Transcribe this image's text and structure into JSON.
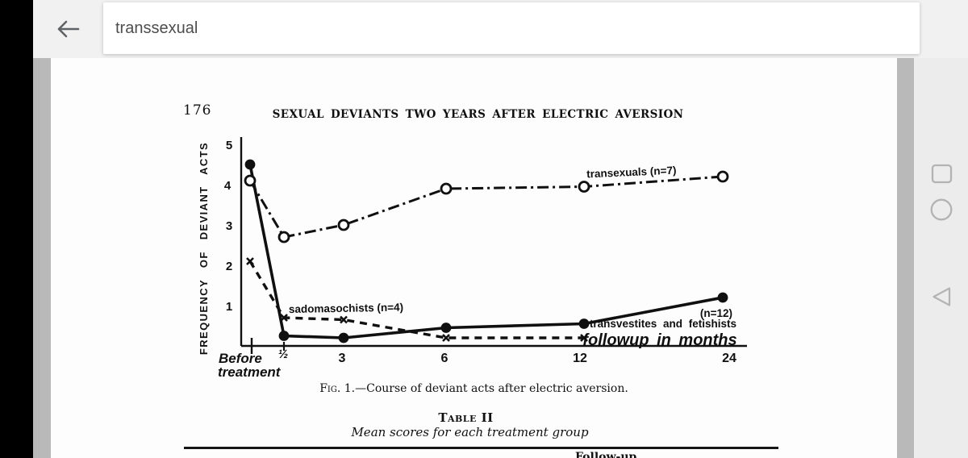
{
  "app": {
    "search_query": "transsexual",
    "icons": {
      "back": "arrow-left-icon",
      "nav_recents": "recents-square-icon",
      "nav_home": "home-circle-icon",
      "nav_back": "back-triangle-icon"
    }
  },
  "page": {
    "page_number": "176",
    "running_title": "SEXUAL DEVIANTS TWO YEARS AFTER ELECTRIC AVERSION",
    "figure_caption_prefix": "Fig. 1.—",
    "figure_caption_text": "Course of deviant acts after electric aversion.",
    "table_label": "Table II",
    "table_subtitle": "Mean scores for each treatment group",
    "table_partial_header": "Follow-up"
  },
  "chart_data": {
    "type": "line",
    "ylabel": "FREQUENCY OF DEVIANT ACTS",
    "xlabel": "followup in months",
    "categories": [
      "Before treatment",
      "½",
      "3",
      "6",
      "12",
      "24"
    ],
    "x_tick_lines": [
      [
        "Before",
        "treatment"
      ],
      [
        "½"
      ],
      [
        "3"
      ],
      [
        "6"
      ],
      [
        "12"
      ],
      [
        "24"
      ]
    ],
    "ylim": [
      0,
      5
    ],
    "yticks": [
      1,
      2,
      3,
      4,
      5
    ],
    "grid": false,
    "ink_color": "#101010",
    "series": [
      {
        "name": "transexuals (n=7)",
        "marker": "open-circle",
        "line": "dash-dot",
        "values": [
          4.1,
          2.7,
          3.0,
          3.9,
          3.95,
          4.2
        ]
      },
      {
        "name": "transvestites and fetishists (n=12)",
        "marker": "filled-circle",
        "line": "solid",
        "values": [
          4.5,
          0.25,
          0.2,
          0.45,
          0.55,
          1.2
        ]
      },
      {
        "name": "sadomasochists (n=4)",
        "marker": "x",
        "line": "dashed",
        "values": [
          2.1,
          0.7,
          0.65,
          0.2,
          0.2,
          null
        ]
      }
    ],
    "annotations": {
      "transsexuals_label": "transexuals (n=7)",
      "sado_label": "sadomasochists (n=4)",
      "tv_n_label": "(n=12)",
      "tv_label": "transvestites  and  fetishists",
      "xaxis_label": "followup  in  months"
    }
  }
}
